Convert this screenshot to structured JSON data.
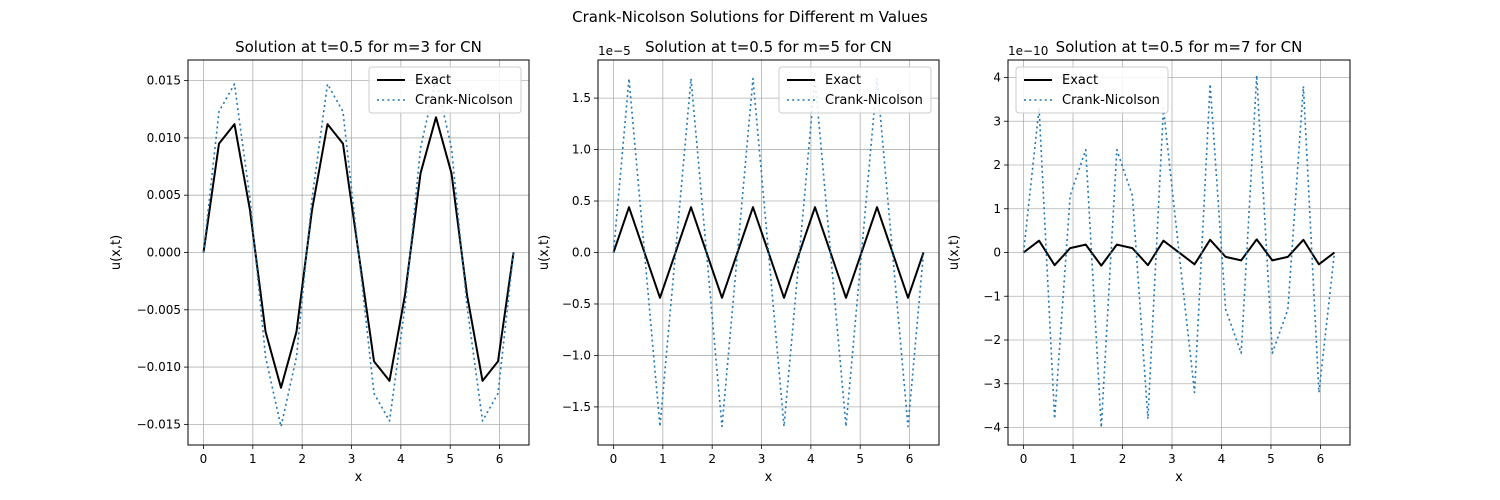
{
  "figure": {
    "suptitle": "Crank-Nicolson Solutions for Different m Values"
  },
  "chart_data": [
    {
      "type": "line",
      "title": "Solution at t=0.5 for m=3 for CN",
      "xlabel": "x",
      "ylabel": "u(x,t)",
      "xlim": [
        -0.314,
        6.597
      ],
      "ylim": [
        -0.0168,
        0.0168
      ],
      "xticks": [
        0,
        1,
        2,
        3,
        4,
        5,
        6
      ],
      "xtick_labels": [
        "0",
        "1",
        "2",
        "3",
        "4",
        "5",
        "6"
      ],
      "yticks": [
        -0.015,
        -0.01,
        -0.005,
        0,
        0.005,
        0.01,
        0.015
      ],
      "ytick_labels": [
        "−0.015",
        "−0.010",
        "−0.005",
        "0.000",
        "0.005",
        "0.010",
        "0.015"
      ],
      "offset_text": "",
      "grid": true,
      "legend_position": "upper right",
      "series": [
        {
          "name": "Exact",
          "style": "solid",
          "color": "#000000",
          "x": [
            0,
            0.314,
            0.628,
            0.942,
            1.257,
            1.571,
            1.885,
            2.199,
            2.513,
            2.827,
            3.142,
            3.456,
            3.77,
            4.084,
            4.398,
            4.712,
            5.027,
            5.341,
            5.655,
            5.969,
            6.283
          ],
          "y": [
            0,
            0.0095,
            0.0112,
            0.0037,
            -0.0069,
            -0.0118,
            -0.0069,
            0.0037,
            0.0112,
            0.0095,
            0,
            -0.0095,
            -0.0112,
            -0.0037,
            0.0069,
            0.0118,
            0.0069,
            -0.0037,
            -0.0112,
            -0.0095,
            0
          ]
        },
        {
          "name": "Crank-Nicolson",
          "style": "dotted",
          "color": "#1f77b4",
          "x": [
            0,
            0.314,
            0.628,
            0.942,
            1.257,
            1.571,
            1.885,
            2.199,
            2.513,
            2.827,
            3.142,
            3.456,
            3.77,
            4.084,
            4.398,
            4.712,
            5.027,
            5.341,
            5.655,
            5.969,
            6.283
          ],
          "y": [
            0,
            0.0123,
            0.0147,
            0.0047,
            -0.0091,
            -0.0152,
            -0.0091,
            0.0047,
            0.0147,
            0.0123,
            0,
            -0.0123,
            -0.0147,
            -0.0047,
            0.0091,
            0.0152,
            0.0091,
            -0.0047,
            -0.0147,
            -0.0123,
            0
          ]
        }
      ]
    },
    {
      "type": "line",
      "title": "Solution at t=0.5 for m=5 for CN",
      "xlabel": "x",
      "ylabel": "u(x,t)",
      "xlim": [
        -0.314,
        6.597
      ],
      "ylim": [
        -1.87,
        1.87
      ],
      "xticks": [
        0,
        1,
        2,
        3,
        4,
        5,
        6
      ],
      "xtick_labels": [
        "0",
        "1",
        "2",
        "3",
        "4",
        "5",
        "6"
      ],
      "yticks": [
        -1.5,
        -1.0,
        -0.5,
        0,
        0.5,
        1.0,
        1.5
      ],
      "ytick_labels": [
        "−1.5",
        "−1.0",
        "−0.5",
        "0.0",
        "0.5",
        "1.0",
        "1.5"
      ],
      "offset_text": "1e−5",
      "grid": true,
      "legend_position": "upper right",
      "series": [
        {
          "name": "Exact",
          "style": "solid",
          "color": "#000000",
          "x": [
            0,
            0.314,
            0.628,
            0.942,
            1.257,
            1.571,
            1.885,
            2.199,
            2.513,
            2.827,
            3.142,
            3.456,
            3.77,
            4.084,
            4.398,
            4.712,
            5.027,
            5.341,
            5.655,
            5.969,
            6.283
          ],
          "y": [
            0,
            0.44,
            0,
            -0.44,
            0,
            0.44,
            0,
            -0.44,
            0,
            0.44,
            0,
            -0.44,
            0,
            0.44,
            0,
            -0.44,
            0,
            0.44,
            0,
            -0.44,
            0
          ]
        },
        {
          "name": "Crank-Nicolson",
          "style": "dotted",
          "color": "#1f77b4",
          "x": [
            0,
            0.314,
            0.628,
            0.942,
            1.257,
            1.571,
            1.885,
            2.199,
            2.513,
            2.827,
            3.142,
            3.456,
            3.77,
            4.084,
            4.398,
            4.712,
            5.027,
            5.341,
            5.655,
            5.969,
            6.283
          ],
          "y": [
            0,
            1.69,
            0,
            -1.69,
            0,
            1.69,
            0,
            -1.69,
            0,
            1.69,
            0,
            -1.69,
            0,
            1.69,
            0,
            -1.69,
            0,
            1.69,
            0,
            -1.69,
            0
          ]
        }
      ]
    },
    {
      "type": "line",
      "title": "Solution at t=0.5 for m=7 for CN",
      "xlabel": "x",
      "ylabel": "u(x,t)",
      "xlim": [
        -0.314,
        6.597
      ],
      "ylim": [
        -4.4,
        4.4
      ],
      "xticks": [
        0,
        1,
        2,
        3,
        4,
        5,
        6
      ],
      "xtick_labels": [
        "0",
        "1",
        "2",
        "3",
        "4",
        "5",
        "6"
      ],
      "yticks": [
        -4,
        -3,
        -2,
        -1,
        0,
        1,
        2,
        3,
        4
      ],
      "ytick_labels": [
        "−4",
        "−3",
        "−2",
        "−1",
        "0",
        "1",
        "2",
        "3",
        "4"
      ],
      "offset_text": "1e−10",
      "grid": true,
      "legend_position": "upper left",
      "series": [
        {
          "name": "Exact",
          "style": "solid",
          "color": "#000000",
          "x": [
            0,
            0.314,
            0.628,
            0.942,
            1.257,
            1.571,
            1.885,
            2.199,
            2.513,
            2.827,
            3.142,
            3.456,
            3.77,
            4.084,
            4.398,
            4.712,
            5.027,
            5.341,
            5.655,
            5.969,
            6.283
          ],
          "y": [
            0,
            0.27,
            -0.29,
            0.1,
            0.18,
            -0.3,
            0.18,
            0.1,
            -0.29,
            0.27,
            0.0,
            -0.27,
            0.29,
            -0.1,
            -0.18,
            0.3,
            -0.18,
            -0.1,
            0.29,
            -0.27,
            0
          ]
        },
        {
          "name": "Crank-Nicolson",
          "style": "dotted",
          "color": "#1f77b4",
          "x": [
            0,
            0.314,
            0.628,
            0.942,
            1.257,
            1.571,
            1.885,
            2.199,
            2.513,
            2.827,
            3.142,
            3.456,
            3.77,
            4.084,
            4.398,
            4.712,
            5.027,
            5.341,
            5.655,
            5.969,
            6.283
          ],
          "y": [
            0,
            3.3,
            -3.8,
            1.3,
            2.35,
            -4.0,
            2.35,
            1.3,
            -3.8,
            3.3,
            0.0,
            -3.2,
            3.85,
            -1.3,
            -2.3,
            4.05,
            -2.3,
            -1.3,
            3.8,
            -3.2,
            0
          ]
        }
      ]
    }
  ]
}
